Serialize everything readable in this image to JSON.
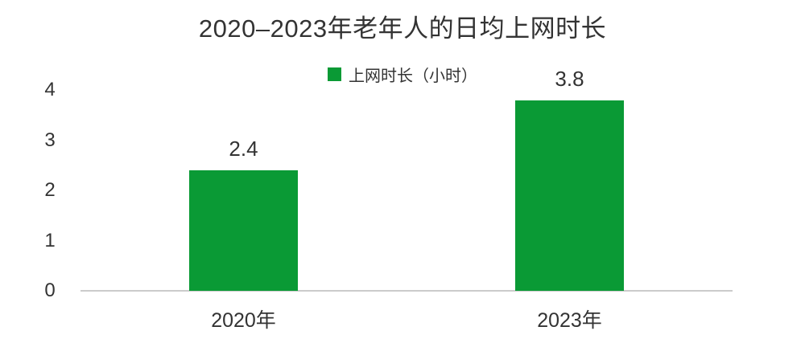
{
  "title": "2020–2023年老年人的日均上网时长",
  "legend": {
    "label": "上网时长（小时）",
    "swatch_color": "#0a9a35"
  },
  "chart_data": {
    "type": "bar",
    "title": "2020–2023年老年人的日均上网时长",
    "categories": [
      "2020年",
      "2023年"
    ],
    "series": [
      {
        "name": "上网时长（小时）",
        "values": [
          2.4,
          3.8
        ]
      }
    ],
    "value_labels": [
      "2.4",
      "3.8"
    ],
    "xlabel": "",
    "ylabel": "",
    "ylim": [
      0,
      4
    ],
    "yticks": [
      "0",
      "1",
      "2",
      "3",
      "4"
    ],
    "grid": false,
    "legend_position": "top-center",
    "bar_color": "#0a9a35",
    "axis_line_color": "#cbcbcb",
    "text_color": "#333333"
  }
}
